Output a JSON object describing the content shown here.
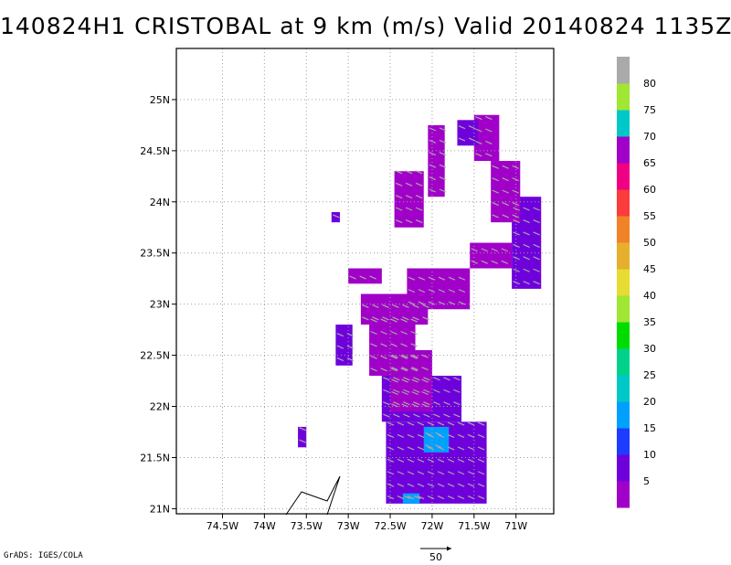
{
  "title": "140824H1 CRISTOBAL at 9 km (m/s) Valid 20140824 1135Z",
  "credit": "GrADS: IGES/COLA",
  "chart_data": {
    "type": "heatmap",
    "title": "140824H1 CRISTOBAL at 9 km (m/s) Valid 20140824 1135Z",
    "xlim": [
      -75.05,
      -70.55
    ],
    "ylim": [
      20.95,
      25.5
    ],
    "x_ticks": [
      {
        "value": -74.5,
        "label": "74.5W"
      },
      {
        "value": -74.0,
        "label": "74W"
      },
      {
        "value": -73.5,
        "label": "73.5W"
      },
      {
        "value": -73.0,
        "label": "73W"
      },
      {
        "value": -72.5,
        "label": "72.5W"
      },
      {
        "value": -72.0,
        "label": "72W"
      },
      {
        "value": -71.5,
        "label": "71.5W"
      },
      {
        "value": -71.0,
        "label": "71W"
      }
    ],
    "y_ticks": [
      {
        "value": 21.0,
        "label": "21N"
      },
      {
        "value": 21.5,
        "label": "21.5N"
      },
      {
        "value": 22.0,
        "label": "22N"
      },
      {
        "value": 22.5,
        "label": "22.5N"
      },
      {
        "value": 23.0,
        "label": "23N"
      },
      {
        "value": 23.5,
        "label": "23.5N"
      },
      {
        "value": 24.0,
        "label": "24N"
      },
      {
        "value": 24.5,
        "label": "24.5N"
      },
      {
        "value": 25.0,
        "label": "25N"
      }
    ],
    "grid": true,
    "colorbar": {
      "labels": [
        "5",
        "10",
        "15",
        "20",
        "25",
        "30",
        "35",
        "40",
        "45",
        "50",
        "55",
        "60",
        "65",
        "70",
        "75",
        "80"
      ],
      "colors": [
        "#a000c8",
        "#6e00dc",
        "#1e3cff",
        "#00a0ff",
        "#00c8c8",
        "#00d28c",
        "#00dc00",
        "#a0e632",
        "#e6dc32",
        "#e6af2d",
        "#f08228",
        "#fa3c3c",
        "#f00082",
        "#a000c8",
        "#00c8c8",
        "#a0e632",
        "#aaaaaa"
      ]
    },
    "wind_regions": [
      {
        "speed": 8,
        "lon_range": [
          -72.55,
          -71.35
        ],
        "lat_range": [
          21.05,
          21.85
        ]
      },
      {
        "speed": 17,
        "lon_range": [
          -72.1,
          -71.8
        ],
        "lat_range": [
          21.55,
          21.8
        ]
      },
      {
        "speed": 17,
        "lon_range": [
          -72.35,
          -72.15
        ],
        "lat_range": [
          21.05,
          21.15
        ]
      },
      {
        "speed": 8,
        "lon_range": [
          -72.6,
          -71.65
        ],
        "lat_range": [
          21.85,
          22.3
        ]
      },
      {
        "speed": 4,
        "lon_range": [
          -72.5,
          -72.0
        ],
        "lat_range": [
          21.95,
          22.55
        ]
      },
      {
        "speed": 4,
        "lon_range": [
          -72.75,
          -72.2
        ],
        "lat_range": [
          22.3,
          22.9
        ]
      },
      {
        "speed": 4,
        "lon_range": [
          -72.85,
          -72.05
        ],
        "lat_range": [
          22.8,
          23.1
        ]
      },
      {
        "speed": 4,
        "lon_range": [
          -72.3,
          -71.55
        ],
        "lat_range": [
          22.95,
          23.35
        ]
      },
      {
        "speed": 4,
        "lon_range": [
          -73.0,
          -72.6
        ],
        "lat_range": [
          23.2,
          23.35
        ]
      },
      {
        "speed": 8,
        "lon_range": [
          -73.15,
          -72.95
        ],
        "lat_range": [
          22.4,
          22.8
        ]
      },
      {
        "speed": 4,
        "lon_range": [
          -71.55,
          -71.05
        ],
        "lat_range": [
          23.35,
          23.6
        ]
      },
      {
        "speed": 8,
        "lon_range": [
          -71.05,
          -70.7
        ],
        "lat_range": [
          23.15,
          24.05
        ]
      },
      {
        "speed": 4,
        "lon_range": [
          -71.3,
          -70.95
        ],
        "lat_range": [
          23.8,
          24.4
        ]
      },
      {
        "speed": 4,
        "lon_range": [
          -71.5,
          -71.2
        ],
        "lat_range": [
          24.4,
          24.85
        ]
      },
      {
        "speed": 8,
        "lon_range": [
          -71.7,
          -71.45
        ],
        "lat_range": [
          24.55,
          24.8
        ]
      },
      {
        "speed": 4,
        "lon_range": [
          -72.05,
          -71.85
        ],
        "lat_range": [
          24.05,
          24.75
        ]
      },
      {
        "speed": 4,
        "lon_range": [
          -72.45,
          -72.1
        ],
        "lat_range": [
          23.75,
          24.3
        ]
      },
      {
        "speed": 8,
        "lon_range": [
          -73.2,
          -73.1
        ],
        "lat_range": [
          23.8,
          23.9
        ]
      },
      {
        "speed": 8,
        "lon_range": [
          -73.6,
          -73.5
        ],
        "lat_range": [
          21.6,
          21.8
        ]
      }
    ],
    "barb_label": "50",
    "reference_vector": {
      "label": "50",
      "units": "m/s"
    }
  }
}
